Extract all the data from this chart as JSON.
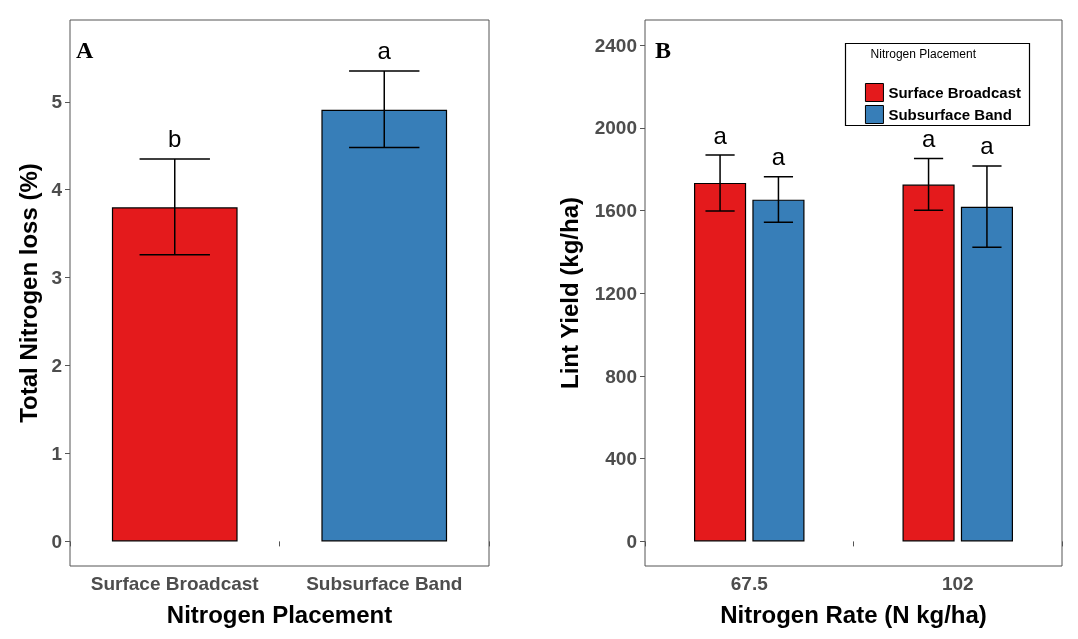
{
  "chart_data": [
    {
      "type": "bar",
      "categories": [
        "Surface Broadcast",
        "Subsurface Band"
      ],
      "values": [
        3.8,
        4.91
      ],
      "colors": [
        "#e41a1c",
        "#377eb8"
      ],
      "errors": [
        [
          3.26,
          4.35
        ],
        [
          4.48,
          5.35
        ]
      ],
      "value_labels": [
        "b",
        "a"
      ],
      "xlabel": "Nitrogen Placement",
      "ylabel": "Total Nitrogen loss (%)",
      "ylim": [
        -0.28,
        5.93
      ],
      "yticks": [
        0,
        1,
        2,
        3,
        4,
        5
      ],
      "grid": false,
      "legend": false,
      "annotations": [
        "A"
      ]
    },
    {
      "type": "bar",
      "categories": [
        "67.5",
        "102"
      ],
      "series": [
        {
          "name": "Surface Broadcast",
          "color": "#e41a1c",
          "values": [
            1734,
            1726
          ],
          "errors": [
            [
              1598,
              1869
            ],
            [
              1602,
              1852
            ]
          ],
          "value_labels": [
            "a",
            "a"
          ]
        },
        {
          "name": "Subsurface Band",
          "color": "#377eb8",
          "values": [
            1653,
            1619
          ],
          "errors": [
            [
              1544,
              1764
            ],
            [
              1423,
              1816
            ]
          ],
          "value_labels": [
            "a",
            "a"
          ]
        }
      ],
      "xlabel": "Nitrogen Rate (N kg/ha)",
      "ylabel": "Lint Yield (kg/ha)",
      "ylim": [
        -119,
        2522
      ],
      "yticks": [
        0,
        400,
        800,
        1200,
        1600,
        2000,
        2400
      ],
      "grid": false,
      "legend": "top right",
      "legend_title": "Nitrogen Placement",
      "annotations": [
        "B"
      ]
    }
  ]
}
